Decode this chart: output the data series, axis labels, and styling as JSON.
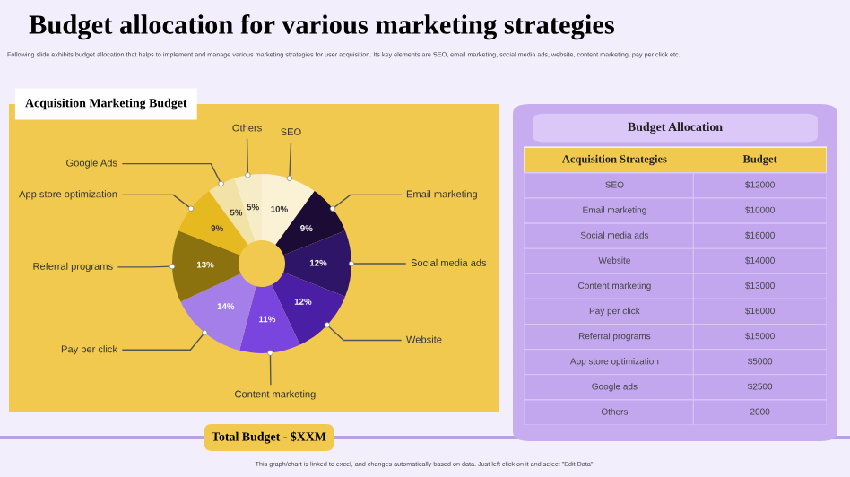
{
  "chart_data": [
    {
      "type": "donut",
      "title": "Budget allocation for various marketing strategies",
      "subtitle": "Following slide exhibits budget allocation that helps to implement and manage various marketing strategies for user acquisition. Its key elements are SEO, email marketing, social media ads, website, content marketing, pay per click etc.",
      "categories": [
        "SEO",
        "Email marketing",
        "Social media ads",
        "Website",
        "Content marketing",
        "Pay per click",
        "Referral programs",
        "App store optimization",
        "Google Ads",
        "Others"
      ],
      "values": [
        10,
        9,
        12,
        12,
        11,
        14,
        13,
        9,
        5,
        5
      ],
      "colors": [
        "#fbf1d4",
        "#1b0b35",
        "#2f1568",
        "#4a1fa6",
        "#7a45df",
        "#a47fe9",
        "#8c720f",
        "#e7b920",
        "#f2e2a6",
        "#f7ecc8"
      ],
      "value_labels": [
        "10%",
        "9%",
        "12%",
        "12%",
        "11%",
        "14%",
        "13%",
        "9%",
        "5%",
        "5%"
      ],
      "annotations": [
        "Acquisition Marketing Budget",
        "Total Budget - $XXM",
        "This graph/chart is linked to excel, and changes automatically based on data. Just left click on it and select \"Edit Data\"."
      ]
    },
    {
      "type": "other",
      "title": "Budget Allocation",
      "xlabel": "Acquisition Strategies",
      "ylabel": "Budget",
      "categories": [
        "SEO",
        "Email marketing",
        "Social media ads",
        "Website",
        "Content marketing",
        "Pay per click",
        "Referral programs",
        "App store optimization",
        "Google ads",
        "Others"
      ],
      "values": [
        12000,
        10000,
        16000,
        14000,
        13000,
        16000,
        15000,
        5000,
        2500,
        2000
      ],
      "value_labels": [
        "$12000",
        "$10000",
        "$16000",
        "$14000",
        "$13000",
        "$16000",
        "$15000",
        "$5000",
        "$2500",
        "2000"
      ]
    }
  ]
}
